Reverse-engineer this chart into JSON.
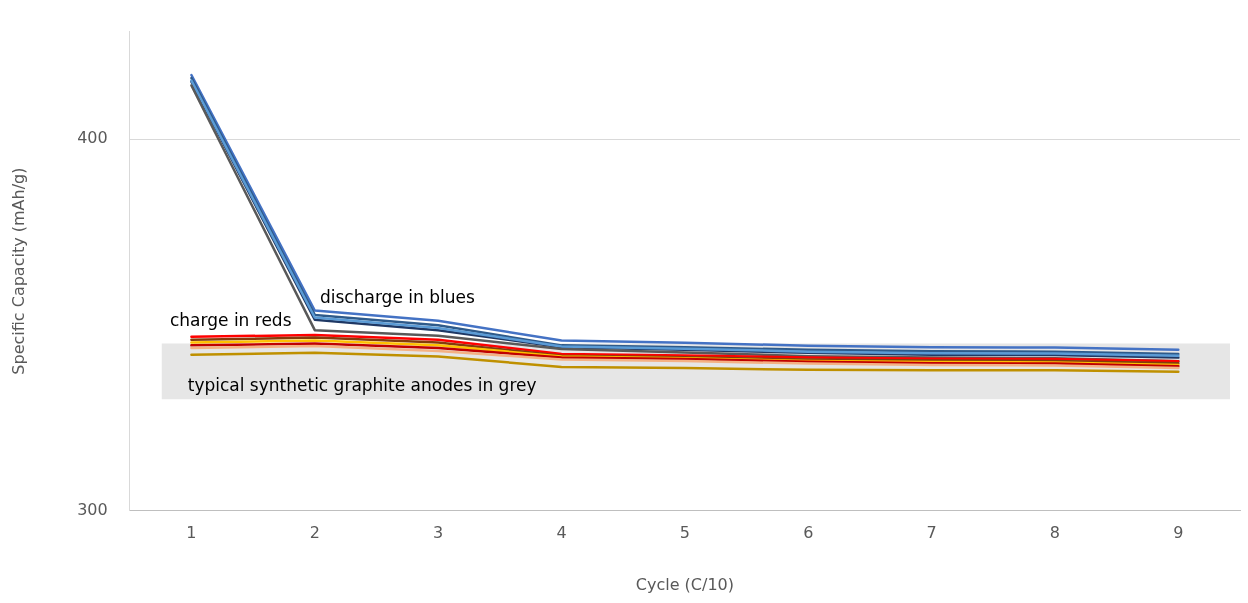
{
  "chart_data": {
    "type": "line",
    "xlabel": "Cycle (C/10)",
    "ylabel": "Specific Capacity (mAh/g)",
    "categories": [
      "1",
      "2",
      "3",
      "4",
      "5",
      "6",
      "7",
      "8",
      "9"
    ],
    "ylim": [
      300,
      429
    ],
    "yticks": [
      300,
      400
    ],
    "grid": "y",
    "legend": false,
    "marker": "none",
    "line_style": "solid",
    "series": [
      {
        "color": "#4472c4",
        "values": [
          417.3,
          353.9,
          351.1,
          345.8,
          345.2,
          344.4,
          344,
          343.9,
          343.3
        ]
      },
      {
        "color": "#2e5a8a",
        "values": [
          416.5,
          352.7,
          349.9,
          344.5,
          344,
          343.3,
          342.9,
          342.8,
          342.2
        ]
      },
      {
        "color": "#1f3864",
        "values": [
          415.5,
          351.4,
          348.6,
          344,
          343.3,
          342.5,
          342,
          341.9,
          341.2
        ]
      },
      {
        "color": "#5b9bd5",
        "values": [
          415.8,
          352,
          349.2,
          344.2,
          343.6,
          342.8,
          342.4,
          342.3,
          341.7
        ]
      },
      {
        "color": "#595959",
        "values": [
          414.5,
          348.6,
          347.1,
          343.5,
          342.6,
          341.6,
          341.2,
          341,
          340.2
        ]
      },
      {
        "color": "#ff0000",
        "values": [
          346.8,
          347.3,
          346,
          342.2,
          341.8,
          341.2,
          340.9,
          340.8,
          340.2
        ]
      },
      {
        "color": "#843c0c",
        "values": [
          346,
          346.6,
          345.3,
          341.7,
          341.3,
          340.7,
          340.4,
          340.3,
          339.7
        ]
      },
      {
        "color": "#ffc000",
        "values": [
          345.3,
          345.8,
          344.5,
          341.5,
          341,
          340.3,
          340,
          339.9,
          339.2
        ]
      },
      {
        "color": "#c00000",
        "values": [
          344.5,
          345,
          343.8,
          341.2,
          340.8,
          340.1,
          339.7,
          339.6,
          338.9
        ]
      },
      {
        "color": "#f4b183",
        "values": [
          343.8,
          344.3,
          343,
          340.7,
          340.3,
          339.6,
          339.2,
          339.1,
          338.4
        ]
      },
      {
        "color": "#bf9000",
        "values": [
          342,
          342.5,
          341.5,
          338.7,
          338.4,
          337.9,
          337.8,
          337.8,
          337.4
        ]
      }
    ],
    "bands": [
      {
        "axis": "y",
        "from": 330,
        "to": 345,
        "label": "typical synthetic graphite anodes in grey",
        "color": "#e6e6e6"
      }
    ],
    "annotations": [
      "discharge in blues",
      "charge in reds"
    ]
  }
}
